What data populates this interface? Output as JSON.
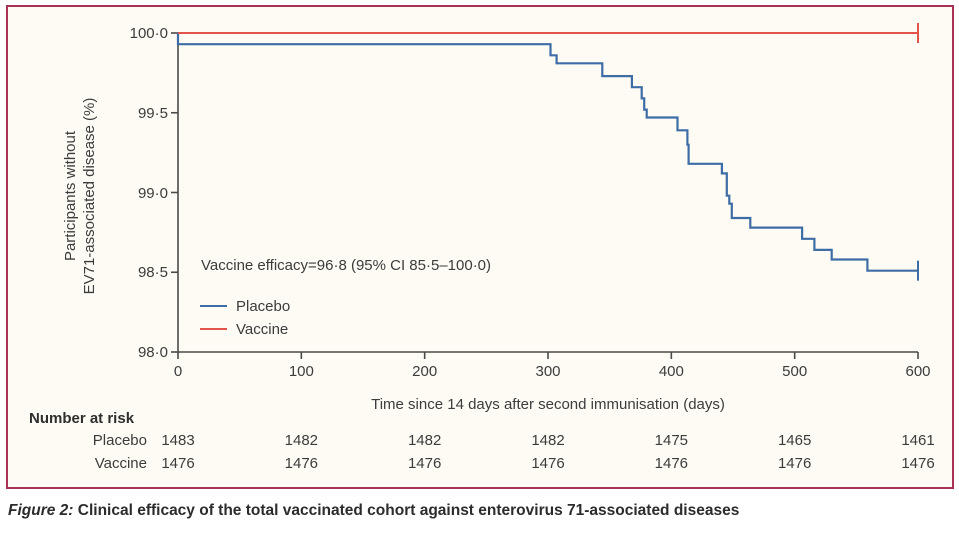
{
  "colors": {
    "panel_border": "#a73457",
    "panel_background": "#fdfbf4",
    "axis": "#4a4a4a",
    "placebo": "#3e6da6",
    "vaccine": "#e2544a"
  },
  "chart_data": {
    "type": "line",
    "subtype": "kaplan-meier-step",
    "title": "",
    "xlabel": "Time since 14 days after second immunisation (days)",
    "ylabel_lines": [
      "Participants without",
      "EV71-associated disease (%)"
    ],
    "xlim": [
      0,
      600
    ],
    "ylim": [
      98.0,
      100.0
    ],
    "xticks": [
      0,
      100,
      200,
      300,
      400,
      500,
      600
    ],
    "xtick_labels": [
      "0",
      "100",
      "200",
      "300",
      "400",
      "500",
      "600"
    ],
    "yticks": [
      100.0,
      99.5,
      99.0,
      98.5,
      98.0
    ],
    "ytick_labels": [
      "100·0",
      "99·5",
      "99·0",
      "98·5",
      "98·0"
    ],
    "grid": false,
    "legend_position": "inside-left-middle",
    "annotation": "Vaccine efficacy=96·8 (95% CI 85·5–100·0)",
    "legend": [
      {
        "label": "Placebo",
        "color": "#3e6da6"
      },
      {
        "label": "Vaccine",
        "color": "#e2544a"
      }
    ],
    "series": [
      {
        "name": "Placebo",
        "color": "#3e6da6",
        "stroke_width": 2.2,
        "censor_tick_at_end": true,
        "points": [
          [
            0,
            100.0
          ],
          [
            0,
            99.93
          ],
          [
            302,
            99.86
          ],
          [
            307,
            99.81
          ],
          [
            344,
            99.73
          ],
          [
            368,
            99.66
          ],
          [
            376,
            99.59
          ],
          [
            378,
            99.52
          ],
          [
            380,
            99.47
          ],
          [
            405,
            99.39
          ],
          [
            413,
            99.3
          ],
          [
            414,
            99.18
          ],
          [
            441,
            99.12
          ],
          [
            445,
            98.98
          ],
          [
            447,
            98.93
          ],
          [
            449,
            98.84
          ],
          [
            464,
            98.78
          ],
          [
            506,
            98.71
          ],
          [
            516,
            98.64
          ],
          [
            530,
            98.58
          ],
          [
            559,
            98.51
          ],
          [
            600,
            98.51
          ]
        ]
      },
      {
        "name": "Vaccine",
        "color": "#e2544a",
        "stroke_width": 2.0,
        "censor_tick_at_end": true,
        "points": [
          [
            0,
            100.0
          ],
          [
            600,
            100.0
          ]
        ]
      }
    ],
    "number_at_risk": {
      "title": "Number at risk",
      "timepoints": [
        0,
        100,
        200,
        300,
        400,
        500,
        600
      ],
      "rows": [
        {
          "label": "Placebo",
          "values": [
            "1483",
            "1482",
            "1482",
            "1482",
            "1475",
            "1465",
            "1461"
          ]
        },
        {
          "label": "Vaccine",
          "values": [
            "1476",
            "1476",
            "1476",
            "1476",
            "1476",
            "1476",
            "1476"
          ]
        }
      ]
    }
  },
  "caption": {
    "prefix": "Figure 2:",
    "text": " Clinical efficacy of the total vaccinated cohort against enterovirus 71-associated diseases"
  }
}
